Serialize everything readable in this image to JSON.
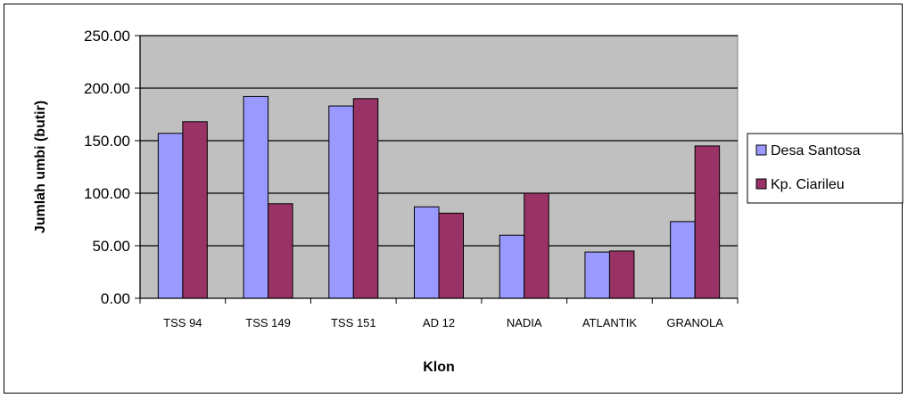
{
  "chart_data": {
    "type": "bar",
    "title": "",
    "xlabel": "Klon",
    "ylabel": "Jumlah umbi (butir)",
    "ylim": [
      0,
      250
    ],
    "yticks": [
      "0.00",
      "50.00",
      "100.00",
      "150.00",
      "200.00",
      "250.00"
    ],
    "ytick_values": [
      0,
      50,
      100,
      150,
      200,
      250
    ],
    "categories": [
      "TSS 94",
      "TSS 149",
      "TSS 151",
      "AD 12",
      "NADIA",
      "ATLANTIK",
      "GRANOLA"
    ],
    "series": [
      {
        "name": "Desa Santosa",
        "color": "#9999ff",
        "values": [
          157,
          192,
          183,
          87,
          60,
          44,
          73
        ]
      },
      {
        "name": "Kp. Ciarileu",
        "color": "#993366",
        "values": [
          168,
          90,
          190,
          81,
          100,
          45,
          145
        ]
      }
    ],
    "grid": true,
    "plot_background": "#c0c0c0",
    "legend_position": "right"
  }
}
